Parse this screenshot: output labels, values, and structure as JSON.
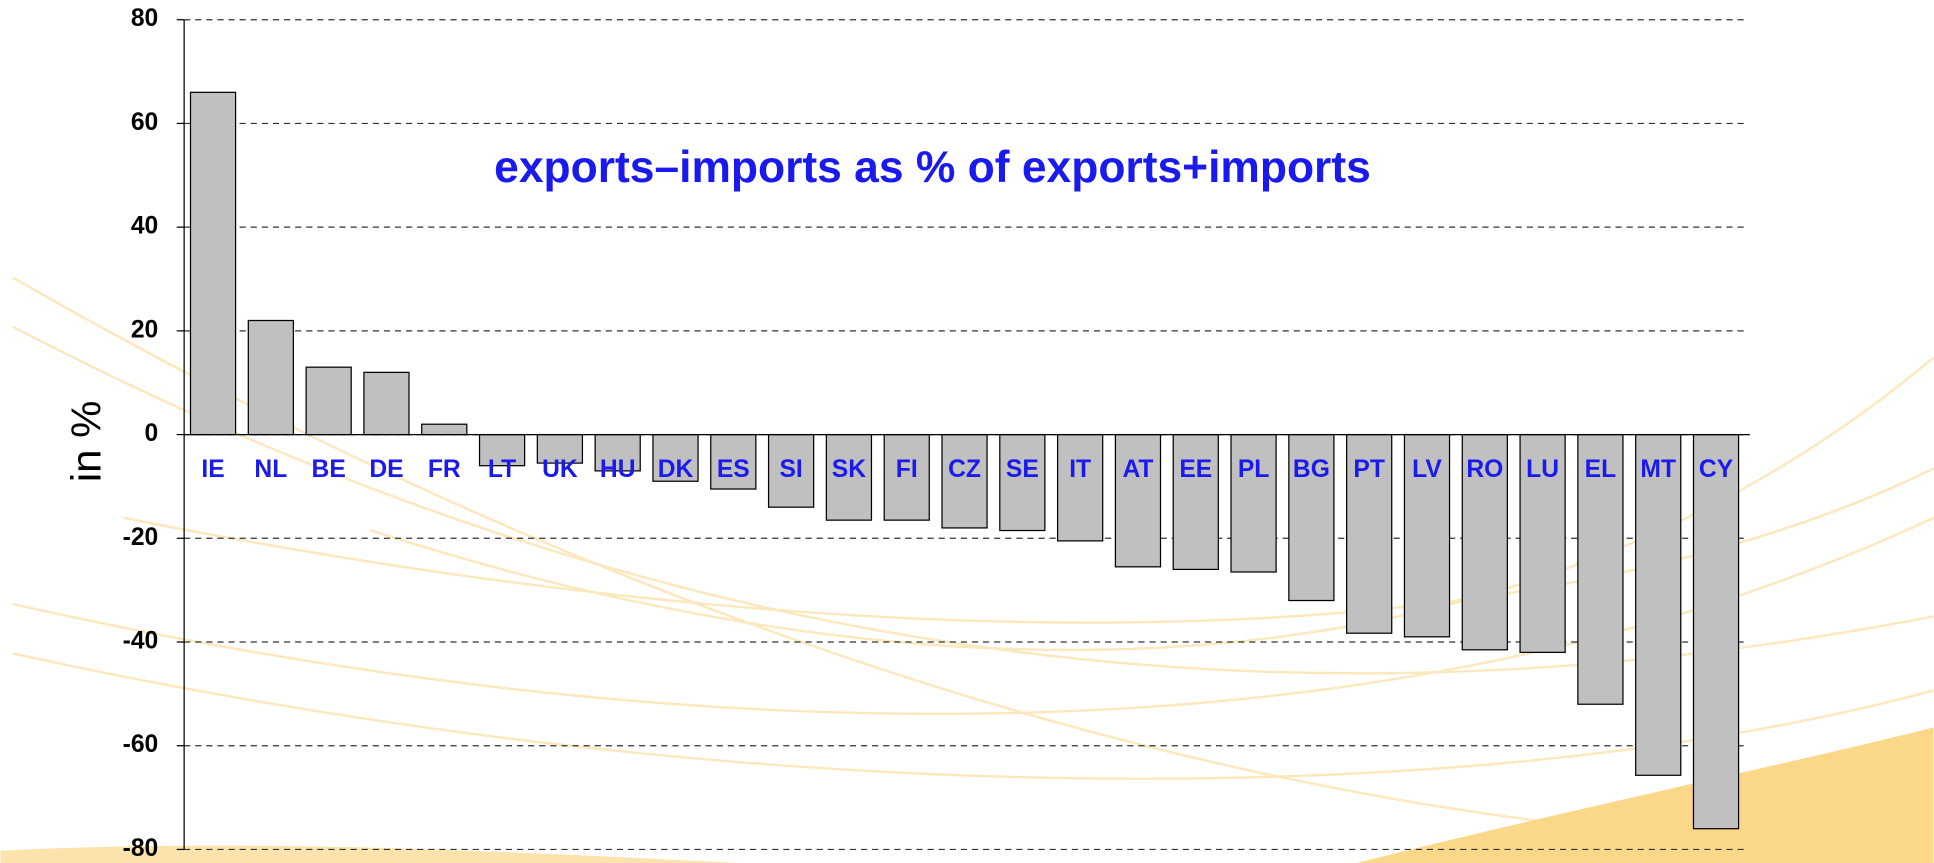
{
  "chart_data": {
    "type": "bar",
    "title": "exports–imports  as % of  exports+imports",
    "y_label": "in %",
    "categories": [
      "IE",
      "NL",
      "BE",
      "DE",
      "FR",
      "LT",
      "UK",
      "HU",
      "DK",
      "ES",
      "SI",
      "SK",
      "FI",
      "CZ",
      "SE",
      "IT",
      "AT",
      "EE",
      "PL",
      "BG",
      "PT",
      "LV",
      "RO",
      "LU",
      "EL",
      "MT",
      "CY"
    ],
    "values": [
      66,
      22,
      13,
      12,
      2,
      -6,
      -5.5,
      -7,
      -9,
      -10.5,
      -14,
      -16.5,
      -16.5,
      -18,
      -18.5,
      -20.5,
      -25.5,
      -26,
      -26.5,
      -32,
      -38.3,
      -39,
      -41.5,
      -42,
      -52,
      -65.7,
      -76
    ],
    "color": "#c0c0c0",
    "ylim": [
      -80,
      80
    ],
    "yticks": [
      80,
      60,
      40,
      20,
      0,
      -20,
      -40,
      -60,
      -80
    ],
    "grid": true
  }
}
